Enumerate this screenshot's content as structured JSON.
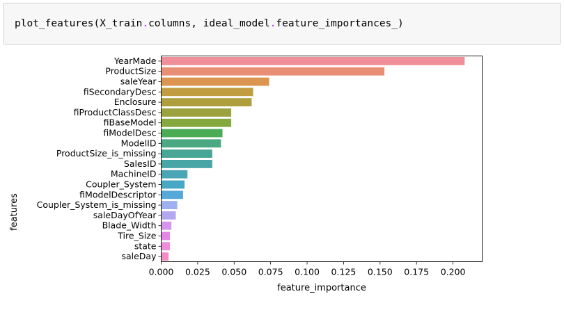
{
  "code": {
    "func": "plot_features",
    "open_paren": "(",
    "arg1_obj": "X_train",
    "dot1": ".",
    "arg1_attr": "columns",
    "sep": ", ",
    "arg2_obj": "ideal_model",
    "dot2": ".",
    "arg2_attr": "feature_importances_",
    "close_paren": ")"
  },
  "chart_data": {
    "type": "bar",
    "orientation": "horizontal",
    "title": "",
    "xlabel": "feature_importance",
    "ylabel": "features",
    "xlim": [
      0,
      0.22
    ],
    "xticks": [
      0.0,
      0.025,
      0.05,
      0.075,
      0.1,
      0.125,
      0.15,
      0.175,
      0.2
    ],
    "xtick_labels": [
      "0.000",
      "0.025",
      "0.050",
      "0.075",
      "0.100",
      "0.125",
      "0.150",
      "0.175",
      "0.200"
    ],
    "grid": false,
    "legend": "none",
    "categories": [
      "YearMade",
      "ProductSize",
      "saleYear",
      "fiSecondaryDesc",
      "Enclosure",
      "fiProductClassDesc",
      "fiBaseModel",
      "fiModelDesc",
      "ModelID",
      "ProductSize_is_missing",
      "SalesID",
      "MachineID",
      "Coupler_System",
      "fiModelDescriptor",
      "Coupler_System_is_missing",
      "saleDayOfYear",
      "Blade_Width",
      "Tire_Size",
      "state",
      "saleDay"
    ],
    "values": [
      0.208,
      0.153,
      0.074,
      0.063,
      0.062,
      0.048,
      0.048,
      0.042,
      0.041,
      0.035,
      0.035,
      0.018,
      0.016,
      0.015,
      0.011,
      0.01,
      0.007,
      0.006,
      0.006,
      0.005
    ],
    "colors": [
      "#f08f9a",
      "#e98f75",
      "#db9551",
      "#c29c41",
      "#ae9f3c",
      "#9ba13c",
      "#84a83d",
      "#4aac55",
      "#4aa982",
      "#48a697",
      "#48a5a5",
      "#4aa5b4",
      "#48a7c5",
      "#54a8da",
      "#9eb0f0",
      "#b3a7f0",
      "#d597ee",
      "#e287e3",
      "#ec8ed8",
      "#f28cc3"
    ]
  }
}
